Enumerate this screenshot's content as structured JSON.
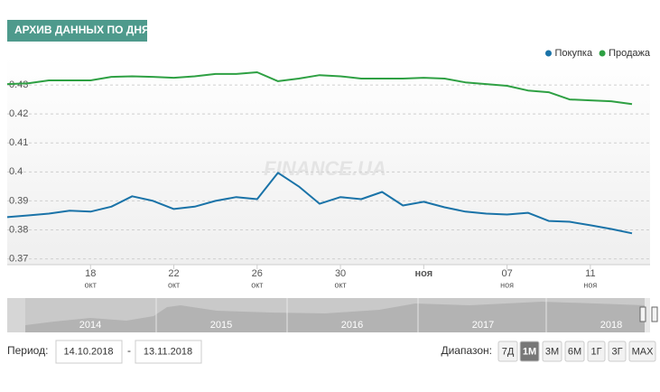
{
  "chart_data": {
    "type": "line",
    "title": "АРХИВ ДАННЫХ ПО ДНЯМ",
    "watermark": "FINANCE.UA",
    "x": [
      "2018-10-14",
      "2018-10-15",
      "2018-10-16",
      "2018-10-17",
      "2018-10-18",
      "2018-10-19",
      "2018-10-20",
      "2018-10-21",
      "2018-10-22",
      "2018-10-23",
      "2018-10-24",
      "2018-10-25",
      "2018-10-26",
      "2018-10-27",
      "2018-10-28",
      "2018-10-29",
      "2018-10-30",
      "2018-10-31",
      "2018-11-01",
      "2018-11-02",
      "2018-11-03",
      "2018-11-04",
      "2018-11-05",
      "2018-11-06",
      "2018-11-07",
      "2018-11-08",
      "2018-11-09",
      "2018-11-10",
      "2018-11-11",
      "2018-11-12",
      "2018-11-13"
    ],
    "series": [
      {
        "name": "Покупка",
        "color": "#1a73a8",
        "values": [
          0.3844,
          0.385,
          0.3856,
          0.3866,
          0.3863,
          0.388,
          0.3916,
          0.39,
          0.3872,
          0.388,
          0.39,
          0.3913,
          0.3906,
          0.3997,
          0.395,
          0.389,
          0.3913,
          0.3906,
          0.3931,
          0.3884,
          0.3897,
          0.3878,
          0.3863,
          0.3856,
          0.3853,
          0.3859,
          0.3831,
          0.3828,
          0.3816,
          0.3803,
          0.3788
        ]
      },
      {
        "name": "Продажа",
        "color": "#2ea043",
        "values": [
          0.4303,
          0.4306,
          0.4316,
          0.4316,
          0.4316,
          0.4328,
          0.433,
          0.4328,
          0.4325,
          0.433,
          0.4338,
          0.4338,
          0.4344,
          0.4313,
          0.4322,
          0.4334,
          0.433,
          0.4322,
          0.4322,
          0.4322,
          0.4325,
          0.4322,
          0.4309,
          0.4303,
          0.4297,
          0.4281,
          0.4275,
          0.425,
          0.4247,
          0.4244,
          0.4234
        ]
      }
    ],
    "xlim": [
      "2018-10-14",
      "2018-11-13"
    ],
    "xticks": [
      {
        "value": "2018-10-18",
        "label": "18",
        "month": "окт"
      },
      {
        "value": "2018-10-22",
        "label": "22",
        "month": "окт"
      },
      {
        "value": "2018-10-26",
        "label": "26",
        "month": "окт"
      },
      {
        "value": "2018-10-30",
        "label": "30",
        "month": "окт"
      },
      {
        "value": "2018-11-03",
        "label": "ноя"
      },
      {
        "value": "2018-11-07",
        "label": "07",
        "month": "ноя"
      },
      {
        "value": "2018-11-11",
        "label": "11",
        "month": "ноя"
      }
    ],
    "ylim": [
      0.368,
      0.44
    ],
    "yticks": [
      0.37,
      0.38,
      0.39,
      0.4,
      0.41,
      0.42,
      0.43
    ],
    "grid": true,
    "legend": "top-right",
    "navigator_years": [
      "2014",
      "2015",
      "2016",
      "2017",
      "2018"
    ],
    "period_label": "Период:",
    "period_from": "14.10.2018",
    "period_sep": "-",
    "period_to": "13.11.2018",
    "range_label": "Диапазон:",
    "range_buttons": [
      "7Д",
      "1М",
      "3М",
      "6М",
      "1Г",
      "3Г",
      "MAX"
    ],
    "range_selected": "1М"
  }
}
